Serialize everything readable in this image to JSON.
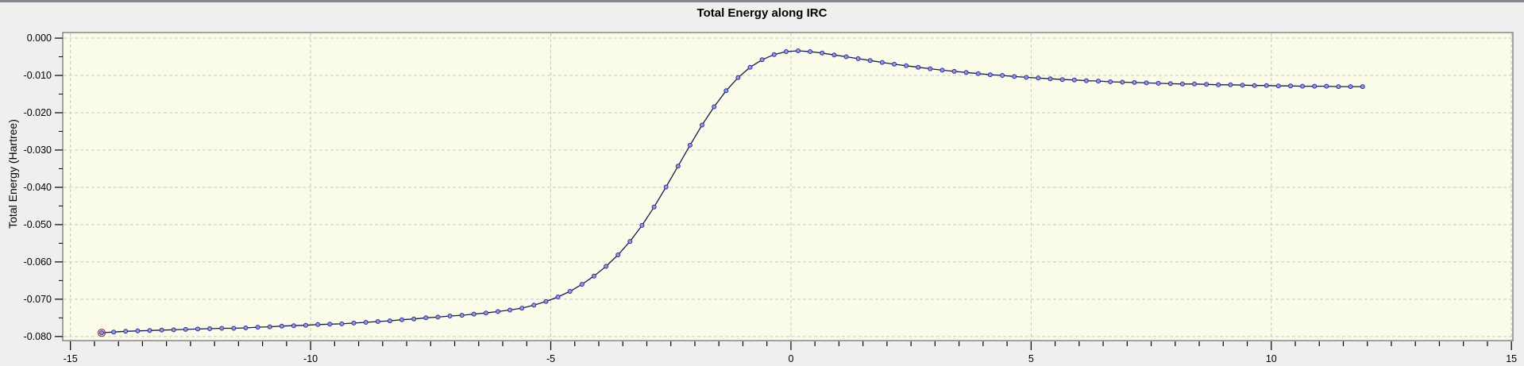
{
  "title": "Total Energy along IRC",
  "colors": {
    "background": "#efefef",
    "top_border": "#85858d",
    "plot_background": "#fbfbe9",
    "grid": "#c8c8c8",
    "frame": "#7f7f7f",
    "line": "#1a1a4d",
    "marker_fill": "#919ad9",
    "marker_stroke": "#2d2d94",
    "highlight_ring": "#a03c3c",
    "text": "#000000"
  },
  "chart_data": {
    "type": "line",
    "title": "Total Energy along IRC",
    "xlabel": "",
    "ylabel": "Total Energy (Hartree)",
    "xlim": [
      -15.16,
      15.03
    ],
    "ylim": [
      -0.0811,
      0.0015
    ],
    "grid": "dashed",
    "legend": "none",
    "x_major_ticks": [
      -15,
      -10,
      -5,
      0,
      5,
      10,
      15
    ],
    "x_tick_labels": [
      "-15",
      "-10",
      "-5",
      "0",
      "5",
      "10",
      "15"
    ],
    "x_minor_step": 0.5,
    "y_major_ticks": [
      0.0,
      -0.01,
      -0.02,
      -0.03,
      -0.04,
      -0.05,
      -0.06,
      -0.07,
      -0.08
    ],
    "y_tick_labels": [
      "0.000",
      "-0.010",
      "-0.020",
      "-0.030",
      "-0.040",
      "-0.050",
      "-0.060",
      "-0.070",
      "-0.080"
    ],
    "y_minor_step": 0.005,
    "selected_point_index": 0,
    "marker": "circle",
    "points": [
      [
        -14.35,
        -0.079
      ],
      [
        -14.1,
        -0.0788
      ],
      [
        -13.85,
        -0.0786
      ],
      [
        -13.6,
        -0.0785
      ],
      [
        -13.35,
        -0.0784
      ],
      [
        -13.1,
        -0.0783
      ],
      [
        -12.85,
        -0.0782
      ],
      [
        -12.6,
        -0.0781
      ],
      [
        -12.35,
        -0.078
      ],
      [
        -12.1,
        -0.0779
      ],
      [
        -11.85,
        -0.0778
      ],
      [
        -11.6,
        -0.0778
      ],
      [
        -11.35,
        -0.0777
      ],
      [
        -11.1,
        -0.0775
      ],
      [
        -10.85,
        -0.0774
      ],
      [
        -10.6,
        -0.0772
      ],
      [
        -10.35,
        -0.0771
      ],
      [
        -10.1,
        -0.077
      ],
      [
        -9.85,
        -0.0768
      ],
      [
        -9.6,
        -0.0767
      ],
      [
        -9.35,
        -0.0766
      ],
      [
        -9.1,
        -0.0764
      ],
      [
        -8.85,
        -0.0762
      ],
      [
        -8.6,
        -0.076
      ],
      [
        -8.35,
        -0.0758
      ],
      [
        -8.1,
        -0.0755
      ],
      [
        -7.85,
        -0.0753
      ],
      [
        -7.6,
        -0.075
      ],
      [
        -7.35,
        -0.0748
      ],
      [
        -7.1,
        -0.0745
      ],
      [
        -6.85,
        -0.0743
      ],
      [
        -6.6,
        -0.074
      ],
      [
        -6.35,
        -0.0737
      ],
      [
        -6.1,
        -0.0733
      ],
      [
        -5.85,
        -0.0729
      ],
      [
        -5.6,
        -0.0724
      ],
      [
        -5.35,
        -0.0716
      ],
      [
        -5.1,
        -0.0706
      ],
      [
        -4.85,
        -0.0694
      ],
      [
        -4.6,
        -0.0679
      ],
      [
        -4.35,
        -0.066
      ],
      [
        -4.1,
        -0.0638
      ],
      [
        -3.85,
        -0.0612
      ],
      [
        -3.6,
        -0.0581
      ],
      [
        -3.35,
        -0.0545
      ],
      [
        -3.1,
        -0.0502
      ],
      [
        -2.85,
        -0.0453
      ],
      [
        -2.6,
        -0.0399
      ],
      [
        -2.35,
        -0.0343
      ],
      [
        -2.1,
        -0.0287
      ],
      [
        -1.85,
        -0.0233
      ],
      [
        -1.6,
        -0.0184
      ],
      [
        -1.35,
        -0.0141
      ],
      [
        -1.1,
        -0.0106
      ],
      [
        -0.85,
        -0.0078
      ],
      [
        -0.6,
        -0.0058
      ],
      [
        -0.35,
        -0.0044
      ],
      [
        -0.1,
        -0.0036
      ],
      [
        0.15,
        -0.0034
      ],
      [
        0.4,
        -0.0036
      ],
      [
        0.65,
        -0.004
      ],
      [
        0.9,
        -0.0045
      ],
      [
        1.15,
        -0.005
      ],
      [
        1.4,
        -0.0055
      ],
      [
        1.65,
        -0.006
      ],
      [
        1.9,
        -0.0065
      ],
      [
        2.15,
        -0.007
      ],
      [
        2.4,
        -0.0074
      ],
      [
        2.65,
        -0.0078
      ],
      [
        2.9,
        -0.0082
      ],
      [
        3.15,
        -0.0086
      ],
      [
        3.4,
        -0.0089
      ],
      [
        3.65,
        -0.0092
      ],
      [
        3.9,
        -0.0095
      ],
      [
        4.15,
        -0.0098
      ],
      [
        4.4,
        -0.01
      ],
      [
        4.65,
        -0.0103
      ],
      [
        4.9,
        -0.0105
      ],
      [
        5.15,
        -0.0107
      ],
      [
        5.4,
        -0.0109
      ],
      [
        5.65,
        -0.0111
      ],
      [
        5.9,
        -0.0112
      ],
      [
        6.15,
        -0.0114
      ],
      [
        6.4,
        -0.0115
      ],
      [
        6.65,
        -0.0117
      ],
      [
        6.9,
        -0.0118
      ],
      [
        7.15,
        -0.0119
      ],
      [
        7.4,
        -0.012
      ],
      [
        7.65,
        -0.0121
      ],
      [
        7.9,
        -0.0122
      ],
      [
        8.15,
        -0.0123
      ],
      [
        8.4,
        -0.0123
      ],
      [
        8.65,
        -0.0124
      ],
      [
        8.9,
        -0.0125
      ],
      [
        9.15,
        -0.0125
      ],
      [
        9.4,
        -0.0126
      ],
      [
        9.65,
        -0.0127
      ],
      [
        9.9,
        -0.0127
      ],
      [
        10.15,
        -0.0128
      ],
      [
        10.4,
        -0.0128
      ],
      [
        10.65,
        -0.0129
      ],
      [
        10.9,
        -0.0129
      ],
      [
        11.15,
        -0.0129
      ],
      [
        11.4,
        -0.013
      ],
      [
        11.65,
        -0.013
      ],
      [
        11.9,
        -0.013
      ]
    ]
  }
}
